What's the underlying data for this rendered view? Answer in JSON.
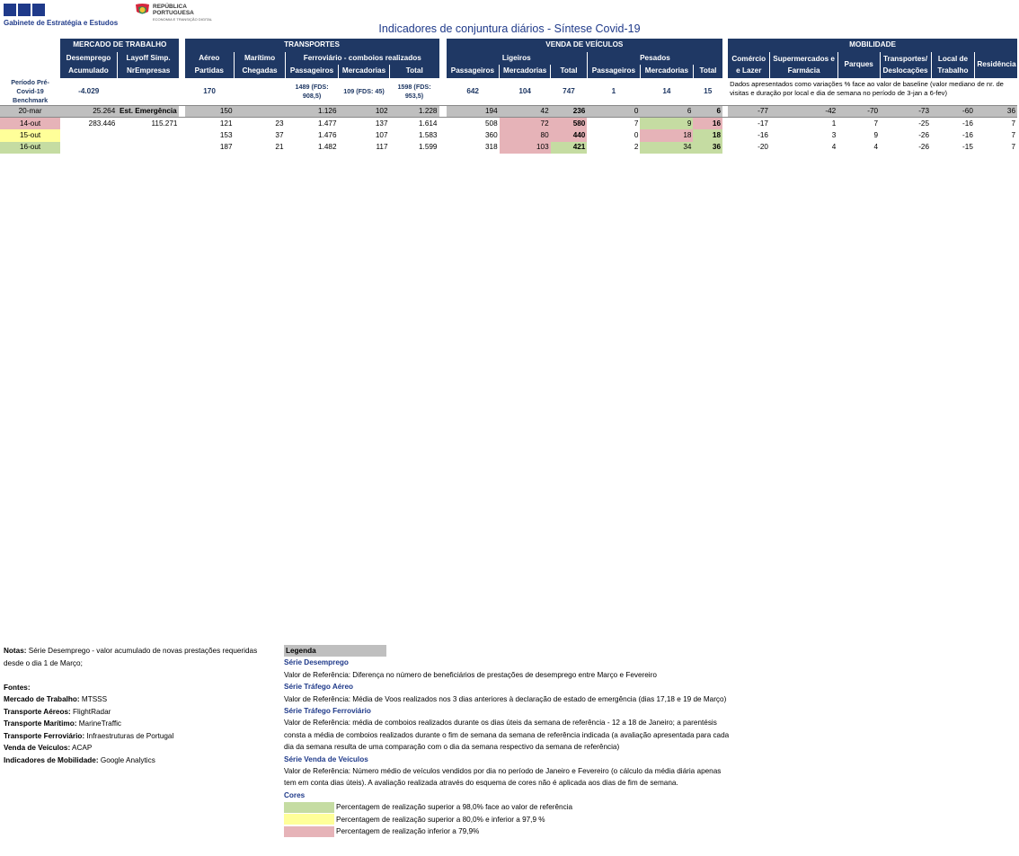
{
  "header": {
    "gee_name": "Gabinete de Estratégia e Estudos",
    "rep_line1": "REPÚBLICA",
    "rep_line2": "PORTUGUESA",
    "rep_line3": "ECONOMIA E TRANSIÇÃO DIGITAL",
    "title": "Indicadores de conjuntura diários - Síntese Covid-19"
  },
  "groups": {
    "mercado": "MERCADO DE TRABALHO",
    "transportes": "TRANSPORTES",
    "vendas": "VENDA DE VEÍCULOS",
    "mobilidade": "MOBILIDADE"
  },
  "subheaders": {
    "desemprego": "Desemprego",
    "layoff": "Layoff Simp.",
    "aereo": "Aéreo",
    "maritimo": "Marítimo",
    "ferroviario": "Ferroviário - comboios realizados",
    "ligeiros": "Ligeiros",
    "pesados": "Pesados",
    "comercio": "Comércio e Lazer",
    "supermercados": "Supermercados e Farmácia",
    "parques": "Parques",
    "transportes_desl": "Transportes/ Deslocações",
    "local_trabalho": "Local de Trabalho",
    "residencia": "Residência"
  },
  "subheaders2": {
    "acumulado": "Acumulado",
    "nrempresas": "NrEmpresas",
    "partidas": "Partidas",
    "chegadas": "Chegadas",
    "passageiros": "Passageiros",
    "mercadorias": "Mercadorias",
    "total": "Total"
  },
  "benchmark": {
    "label": "Período Pré-Covid-19 Benchmark",
    "desemprego": "-4.029",
    "aereo": "170",
    "fer_pass": "1489 (FDS: 908,5)",
    "fer_merc": "109 (FDS: 45)",
    "fer_total": "1598 (FDS: 953,5)",
    "lig_pass": "642",
    "lig_merc": "104",
    "lig_total": "747",
    "pes_pass": "1",
    "pes_merc": "14",
    "pes_total": "15",
    "note": "Dados apresentados como variações % face ao valor de baseline (valor mediano de nr. de visitas e duração por local e dia de semana no período de 3-jan a 6-fev)"
  },
  "ref_row": [
    "20-mar",
    "25.264",
    "Est. Emergência",
    "150",
    "",
    "1.126",
    "102",
    "1.228",
    "194",
    "42",
    "236",
    "0",
    "6",
    "6",
    "-77",
    "-42",
    "-70",
    "-73",
    "-60",
    "36"
  ],
  "rows": [
    {
      "c": [
        "14-out",
        "283.446",
        "115.271",
        "121",
        "23",
        "1.477",
        "137",
        "1.614",
        "508",
        "72",
        "580",
        "7",
        "9",
        "16",
        "-17",
        "1",
        "7",
        "-25",
        "-16",
        "7"
      ],
      "k": "p........pp.gp......"
    },
    {
      "c": [
        "15-out",
        "",
        "",
        "153",
        "37",
        "1.476",
        "107",
        "1.583",
        "360",
        "80",
        "440",
        "0",
        "18",
        "18",
        "-16",
        "3",
        "9",
        "-26",
        "-16",
        "7"
      ],
      "k": "y........pp.pg......"
    },
    {
      "c": [
        "16-out",
        "",
        "",
        "187",
        "21",
        "1.482",
        "117",
        "1.599",
        "318",
        "103",
        "421",
        "2",
        "34",
        "36",
        "-20",
        "4",
        "4",
        "-26",
        "-15",
        "7"
      ],
      "k": "g........pg.gg......"
    }
  ],
  "notes": {
    "notas_label": "Notas:",
    "notas_text": "Série Desemprego - valor acumulado de novas prestações requeridas desde o dia 1 de Março;",
    "fontes_label": "Fontes:",
    "fontes": [
      {
        "k": "Mercado de Trabalho:",
        "v": "MTSSS"
      },
      {
        "k": "Transporte Aéreos:",
        "v": "FlightRadar"
      },
      {
        "k": "Transporte Marítimo:",
        "v": "MarineTraffic"
      },
      {
        "k": "Transporte Ferroviário:",
        "v": "Infraestruturas de Portugal"
      },
      {
        "k": "Venda de Veículos:",
        "v": "ACAP"
      },
      {
        "k": "Indicadores de Mobilidade:",
        "v": "Google Analytics"
      }
    ]
  },
  "legend": {
    "title": "Legenda",
    "s1_title": "Série Desemprego",
    "s1_text": "Valor de Referência: Diferença no número de beneficiários de prestações de desemprego entre Março e Fevereiro",
    "s2_title": "Série Tráfego Aéreo",
    "s2_text": "Valor de Referência: Média de Voos realizados nos 3 dias anteriores à declaração de estado de emergência (dias 17,18 e 19 de Março)",
    "s3_title": "Série Tráfego Ferroviário",
    "s3_text": "Valor de Referência: média de comboios realizados durante os dias úteis da semana de referência - 12 a 18 de Janeiro; a parentésis consta a média de comboios realizados durante o fim de semana da semana de referência indicada (a avaliação apresentada para cada dia da semana resulta de uma comparação com o dia da semana respectivo da semana de referência)",
    "s4_title": "Série Venda de Veículos",
    "s4_text": "Valor de Referência: Número médio de veículos vendidos por dia no período de Janeiro e Fevereiro (o cálculo da média diária apenas tem em conta dias úteis). A avaliação realizada através do esquema de cores não é aplicada aos dias de fim de semana.",
    "cores_title": "Cores",
    "cores": [
      {
        "color": "#c5dca2",
        "text": "Percentagem de realização superior a 98,0% face ao valor de referência"
      },
      {
        "color": "#ffff99",
        "text": "Percentagem de realização superior a 80,0% e inferior a 97,9 %"
      },
      {
        "color": "#e6b3b8",
        "text": "Percentagem de realização inferior a 79,9%"
      }
    ]
  }
}
